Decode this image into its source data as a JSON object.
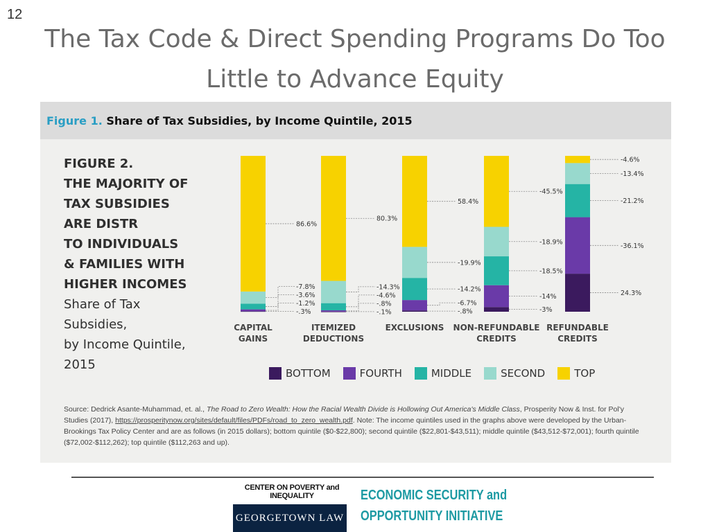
{
  "slide": {
    "number": "12",
    "title_line1": "The Tax Code & Direct Spending Programs Do Too",
    "title_line2": "Little to Advance Equity"
  },
  "figure_header": {
    "label": "Figure 1.",
    "title": "Share of Tax Subsidies, by Income Quintile, 2015"
  },
  "figure_text": {
    "bold_lines": [
      "FIGURE 2.",
      "THE MAJORITY OF",
      "TAX SUBSIDIES",
      "ARE DISTR",
      "TO INDIVIDUALS",
      "& FAMILIES WITH",
      "HIGHER INCOMES"
    ],
    "normal_lines": [
      "Share of Tax Subsidies,",
      "by Income Quintile,",
      "2015"
    ]
  },
  "chart_data": {
    "type": "bar",
    "stacked": true,
    "categories": [
      "CAPITAL GAINS",
      "ITEMIZED DEDUCTIONS",
      "EXCLUSIONS",
      "NON-REFUNDABLE CREDITS",
      "REFUNDABLE CREDITS"
    ],
    "category_label_lines": [
      [
        "CAPITAL",
        "GAINS"
      ],
      [
        "ITEMIZED",
        "DEDUCTIONS"
      ],
      [
        "EXCLUSIONS"
      ],
      [
        "NON-REFUNDABLE",
        "CREDITS"
      ],
      [
        "REFUNDABLE",
        "CREDITS"
      ]
    ],
    "series": [
      {
        "name": "BOTTOM",
        "color": "#3b1a5e",
        "values": [
          0.3,
          0.1,
          0.8,
          3,
          24.3
        ]
      },
      {
        "name": "FOURTH",
        "color": "#6a3aa8",
        "values": [
          1.2,
          0.8,
          6.7,
          14,
          36.1
        ]
      },
      {
        "name": "MIDDLE",
        "color": "#25b4a5",
        "values": [
          3.6,
          4.6,
          14.2,
          18.5,
          21.2
        ]
      },
      {
        "name": "SECOND",
        "color": "#98d9cd",
        "values": [
          7.8,
          14.3,
          19.9,
          18.9,
          13.4
        ]
      },
      {
        "name": "TOP",
        "color": "#f7d200",
        "values": [
          86.6,
          80.3,
          58.4,
          45.5,
          4.6
        ]
      }
    ],
    "data_labels": [
      [
        "-.3%",
        "-1.2%",
        "-3.6%",
        "-7.8%",
        "86.6%"
      ],
      [
        "-.1%",
        "-.8%",
        "-4.6%",
        "-14.3%",
        "80.3%"
      ],
      [
        "-.8%",
        "-6.7%",
        "-14.2%",
        "-19.9%",
        "58.4%"
      ],
      [
        "-3%",
        "-14%",
        "-18.5%",
        "-18.9%",
        "-45.5%"
      ],
      [
        "24.3%",
        "-36.1%",
        "-21.2%",
        "-13.4%",
        "-4.6%"
      ]
    ],
    "ylim": [
      0,
      100
    ],
    "legend_position": "bottom"
  },
  "source": {
    "prefix": "Source: Dedrick Asante-Muhammad, et. al., ",
    "title_italic": "The Road to Zero Wealth: How the Racial Wealth Divide is Hollowing Out America's Middle Class",
    "middle": ", Prosperity Now & Inst. for Pol'y Studies (2017), ",
    "link": "https://prosperitynow.org/sites/default/files/PDFs/road_to_zero_wealth.pdf",
    "suffix": ". Note: The income quintiles used in the graphs above were developed by the Urban-Brookings Tax Policy Center and are as follows (in 2015 dollars); bottom quintile ($0-$22,800); second quintile ($22,801-$43,511); middle quintile ($43,512-$72,001); fourth quintile ($72,002-$112,262); top quintile ($112,263 and up)."
  },
  "footer": {
    "org_top": "CENTER ON POVERTY and INEQUALITY",
    "org_box": "GEORGETOWN LAW",
    "initiative_line1": "ECONOMIC SECURITY and",
    "initiative_line2": "OPPORTUNITY INITIATIVE"
  }
}
